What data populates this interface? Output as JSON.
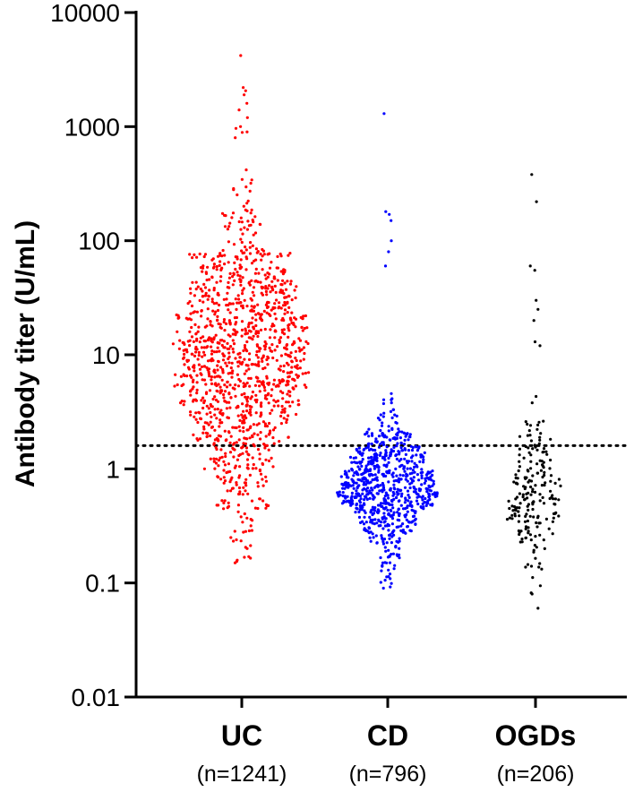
{
  "chart_data": {
    "type": "scatter",
    "subtype": "beeswarm",
    "title": "",
    "ylabel": "Antibody titer (U/mL)",
    "xlabel": "",
    "yscale": "log",
    "ylim": [
      0.01,
      10000
    ],
    "yticks": [
      "0.01",
      "0.1",
      "1",
      "10",
      "100",
      "1000",
      "10000"
    ],
    "threshold": 1.6,
    "threshold_style": "dotted",
    "grid": false,
    "legend": "none",
    "groups": [
      {
        "label": "UC",
        "n_label": "(n=1241)",
        "n": 1241,
        "color": "#ff0000",
        "min": 0.15,
        "max": 4200,
        "median": 9,
        "notable_points": [
          4200,
          2200,
          1900,
          1600,
          1400,
          1200,
          1000,
          900,
          800,
          0.25,
          0.2,
          0.17,
          0.15
        ]
      },
      {
        "label": "CD",
        "n_label": "(n=796)",
        "n": 796,
        "color": "#0000ff",
        "min": 0.09,
        "max": 1300,
        "median": 0.7,
        "notable_points": [
          1300,
          180,
          170,
          150,
          100,
          80,
          60,
          0.12,
          0.09
        ]
      },
      {
        "label": "OGDs",
        "n_label": "(n=206)",
        "n": 206,
        "color": "#000000",
        "min": 0.06,
        "max": 380,
        "median": 0.55,
        "notable_points": [
          380,
          220,
          60,
          55,
          30,
          25,
          20,
          13,
          12,
          0.08,
          0.06
        ]
      }
    ]
  }
}
